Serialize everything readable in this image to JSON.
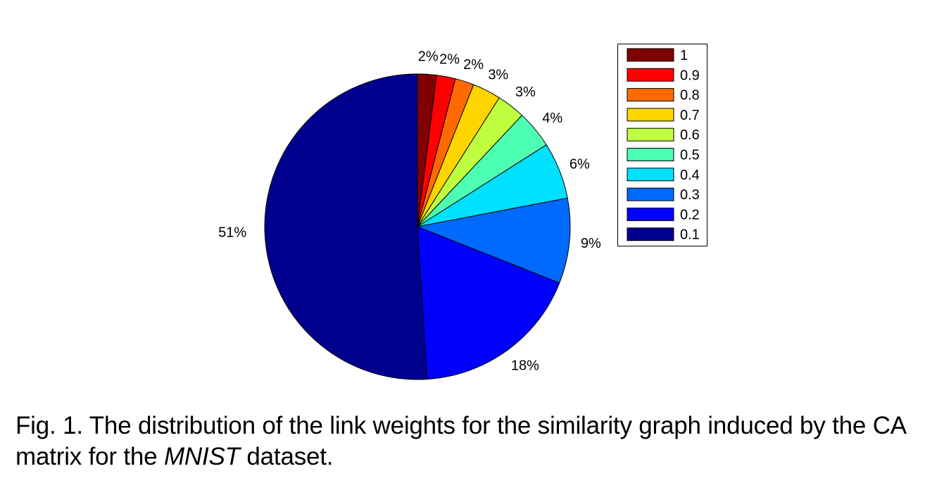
{
  "chart_data": {
    "type": "pie",
    "slices": [
      {
        "label": "1",
        "value": 2,
        "pct_label": "2%",
        "color": "#800000"
      },
      {
        "label": "0.9",
        "value": 2,
        "pct_label": "2%",
        "color": "#ff0000"
      },
      {
        "label": "0.8",
        "value": 2,
        "pct_label": "2%",
        "color": "#ff6a00"
      },
      {
        "label": "0.7",
        "value": 3,
        "pct_label": "3%",
        "color": "#ffd500"
      },
      {
        "label": "0.6",
        "value": 3,
        "pct_label": "3%",
        "color": "#bfff40"
      },
      {
        "label": "0.5",
        "value": 4,
        "pct_label": "4%",
        "color": "#4dffb3"
      },
      {
        "label": "0.4",
        "value": 6,
        "pct_label": "6%",
        "color": "#00e1ff"
      },
      {
        "label": "0.3",
        "value": 9,
        "pct_label": "9%",
        "color": "#006aff"
      },
      {
        "label": "0.2",
        "value": 18,
        "pct_label": "18%",
        "color": "#0000ff"
      },
      {
        "label": "0.1",
        "value": 51,
        "pct_label": "51%",
        "color": "#00008f"
      }
    ],
    "legend_position": "right"
  },
  "caption": {
    "prefix": "Fig. 1. The distribution of the link weights for the similarity graph induced by the CA matrix for the",
    "dataset": "MNIST",
    "suffix": "dataset."
  }
}
